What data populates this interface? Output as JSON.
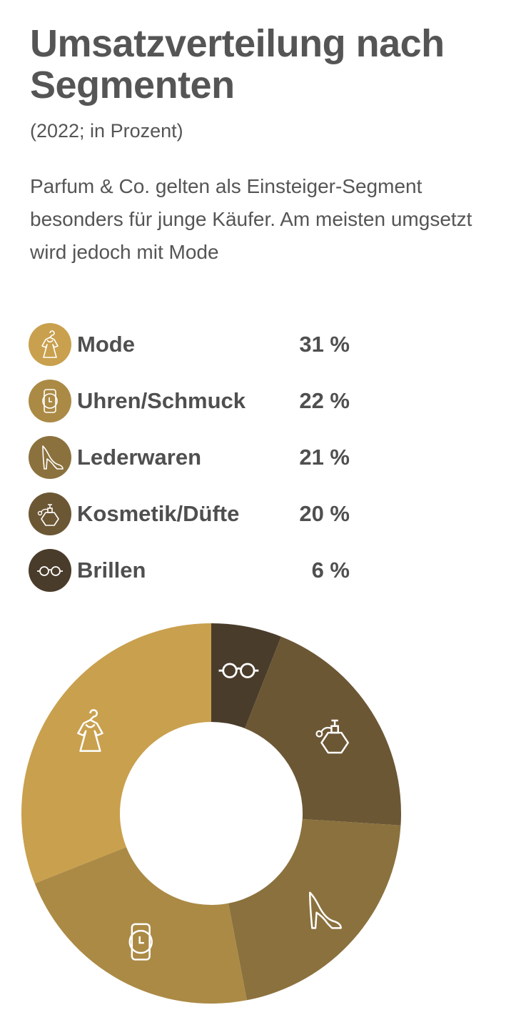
{
  "header": {
    "title": "Umsatzverteilung nach Segmenten",
    "subtitle": "(2022; in Prozent)",
    "description": "Parfum & Co. gelten als Einsteiger-Segment besonders für junge Käufer. Am meisten umgsetzt wird jedoch mit Mode"
  },
  "legend": [
    {
      "label": "Mode",
      "value": "31 %",
      "icon": "dress-icon",
      "color": "#c9a04e"
    },
    {
      "label": "Uhren/Schmuck",
      "value": "22 %",
      "icon": "watch-icon",
      "color": "#ab8a45"
    },
    {
      "label": "Lederwaren",
      "value": "21 %",
      "icon": "high-heel-icon",
      "color": "#8b713d"
    },
    {
      "label": "Kosmetik/Düfte",
      "value": "20 %",
      "icon": "perfume-icon",
      "color": "#6c5735"
    },
    {
      "label": "Brillen",
      "value": "6 %",
      "icon": "glasses-icon",
      "color": "#4a3c2b"
    }
  ],
  "chart_data": {
    "type": "pie",
    "title": "Umsatzverteilung nach Segmenten",
    "subtitle": "(2022; in Prozent)",
    "unit": "%",
    "slices": [
      {
        "label": "Brillen",
        "value": 6,
        "color": "#4a3c2b",
        "icon": "glasses-icon"
      },
      {
        "label": "Kosmetik/Düfte",
        "value": 20,
        "color": "#6c5735",
        "icon": "perfume-icon"
      },
      {
        "label": "Lederwaren",
        "value": 21,
        "color": "#8b713d",
        "icon": "high-heel-icon"
      },
      {
        "label": "Uhren/Schmuck",
        "value": 22,
        "color": "#ab8a45",
        "icon": "watch-icon"
      },
      {
        "label": "Mode",
        "value": 31,
        "color": "#c9a04e",
        "icon": "dress-icon"
      }
    ],
    "donut": true,
    "start_angle": "top",
    "direction": "clockwise",
    "legend_position": "top"
  }
}
